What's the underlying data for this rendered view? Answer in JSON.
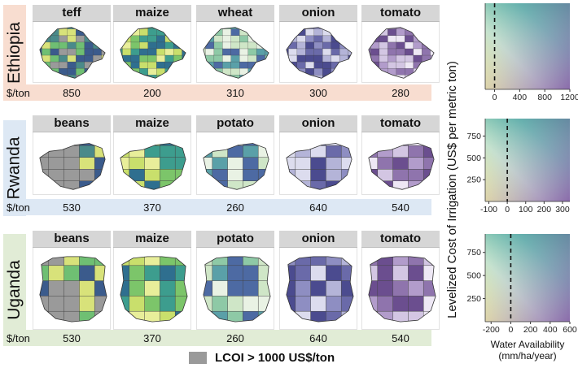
{
  "chart_data": {
    "type": "heatmap",
    "countries": [
      {
        "name": "Ethiopia",
        "band_color": "#f8ddd0",
        "crops": [
          {
            "crop": "teff",
            "price": "850"
          },
          {
            "crop": "maize",
            "price": "200"
          },
          {
            "crop": "wheat",
            "price": "310"
          },
          {
            "crop": "onion",
            "price": "300"
          },
          {
            "crop": "tomato",
            "price": "280"
          }
        ]
      },
      {
        "name": "Rwanda",
        "band_color": "#dde8f4",
        "crops": [
          {
            "crop": "beans",
            "price": "530"
          },
          {
            "crop": "maize",
            "price": "370"
          },
          {
            "crop": "potato",
            "price": "260"
          },
          {
            "crop": "onion",
            "price": "640"
          },
          {
            "crop": "tomato",
            "price": "540"
          }
        ]
      },
      {
        "name": "Uganda",
        "band_color": "#e1ecd6",
        "crops": [
          {
            "crop": "beans",
            "price": "530"
          },
          {
            "crop": "maize",
            "price": "370"
          },
          {
            "crop": "potato",
            "price": "260"
          },
          {
            "crop": "onion",
            "price": "640"
          },
          {
            "crop": "tomato",
            "price": "540"
          }
        ]
      }
    ],
    "price_unit": "$/ton",
    "legend_note": "LCOI > 1000 US$/ton",
    "ylabel": "Levelized Cost of Irrigation (US$ per metric ton)",
    "xlabel_line1": "Water Availability",
    "xlabel_line2": "(mm/ha/year)",
    "legend_panels": [
      {
        "xmin": -150,
        "xmax": 1200,
        "xticks": [
          "0",
          "400",
          "800",
          "1200"
        ],
        "xtick_values": [
          0,
          400,
          800,
          1200
        ],
        "yticks": []
      },
      {
        "xmin": -120,
        "xmax": 340,
        "xticks": [
          "-100",
          "0",
          "100",
          "200",
          "300"
        ],
        "xtick_values": [
          -100,
          0,
          100,
          200,
          300
        ],
        "yticks": [
          "250",
          "500",
          "750"
        ],
        "ytick_values": [
          250,
          500,
          750
        ],
        "ymin": 0,
        "ymax": 950
      },
      {
        "xmin": -260,
        "xmax": 600,
        "xticks": [
          "-200",
          "0",
          "200",
          "400",
          "600"
        ],
        "xtick_values": [
          -200,
          0,
          200,
          400,
          600
        ],
        "yticks": [
          "250",
          "500",
          "750"
        ],
        "ytick_values": [
          250,
          500,
          750
        ],
        "ymin": 0,
        "ymax": 950
      }
    ],
    "zero_line_value": 0
  }
}
